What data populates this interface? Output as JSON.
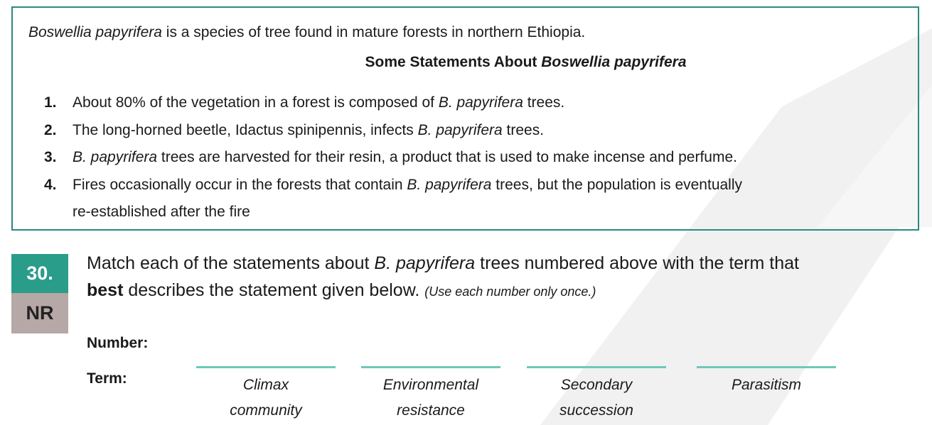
{
  "box": {
    "intro_species": "Boswellia papyrifera",
    "intro_rest": " is a species of tree found in mature forests in northern Ethiopia.",
    "title_plain": "Some Statements About ",
    "title_italic": "Boswellia papyrifera",
    "statements": [
      {
        "num": "1.",
        "pre": "About 80% of the vegetation in a forest is composed of ",
        "ital": "B. papyrifera",
        "post": " trees.",
        "line2": ""
      },
      {
        "num": "2.",
        "pre": "The long-horned beetle, Idactus spinipennis, infects ",
        "ital": "B. papyrifera",
        "post": " trees.",
        "line2": ""
      },
      {
        "num": "3.",
        "pre": "",
        "ital": "B. papyrifera",
        "post": " trees are harvested for their resin, a product that is used to make incense and perfume.",
        "line2": ""
      },
      {
        "num": "4.",
        "pre": "Fires occasionally occur in the forests that contain ",
        "ital": "B. papyrifera",
        "post": " trees, but the population is eventually",
        "line2": "re-established after the fire"
      }
    ]
  },
  "question": {
    "number": "30.",
    "type": "NR",
    "text_a": "Match each of the statements about ",
    "text_ital": "B. papyrifera",
    "text_b": " trees numbered above with the term that",
    "text_bold": "best",
    "text_c": " describes the statement given below. ",
    "text_small": "(Use each number only once.)",
    "label_number": "Number:",
    "label_term": "Term:",
    "terms": [
      {
        "line1": "Climax",
        "line2": "community"
      },
      {
        "line1": "Environmental",
        "line2": "resistance"
      },
      {
        "line1": "Secondary",
        "line2": "succession"
      },
      {
        "line1": "Parasitism",
        "line2": ""
      }
    ]
  },
  "colors": {
    "teal_accent": "#2a9c8a",
    "badge_grey": "#b5a8a6",
    "answer_line": "#6ec9ba"
  }
}
